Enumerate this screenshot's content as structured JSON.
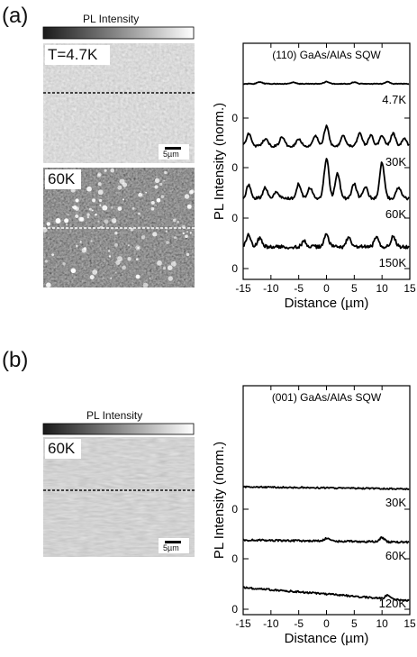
{
  "panel_a": {
    "label": "(a)",
    "colorbar_label": "PL Intensity",
    "image_top": {
      "temperature_label": "T=4.7K",
      "scalebar_label": "5µm"
    },
    "image_bottom": {
      "temperature_label": "60K"
    }
  },
  "panel_b": {
    "label": "(b)",
    "colorbar_label": "PL Intensity",
    "image": {
      "temperature_label": "60K",
      "scalebar_label": "5µm"
    }
  },
  "chart_data": [
    {
      "type": "line",
      "title": "(110) GaAs/AlAs SQW",
      "xlabel": "Distance (µm)",
      "ylabel": "PL Intensity (norm.)",
      "xlim": [
        -15,
        15
      ],
      "xticks": [
        "-15",
        "-10",
        "-5",
        "0",
        "5",
        "10",
        "15"
      ],
      "offset_zero_labels": [
        "0",
        "0",
        "0",
        "0"
      ],
      "series": [
        {
          "name": "4.7K",
          "level": 0.95,
          "peaks": [
            [
              -12,
              0.05
            ],
            [
              -6,
              0.04
            ],
            [
              0,
              0.06
            ],
            [
              5,
              0.05
            ],
            [
              11,
              0.05
            ]
          ],
          "noise": 0.02
        },
        {
          "name": "30K",
          "level": 0.6,
          "peaks": [
            [
              -14,
              0.35
            ],
            [
              -11,
              0.2
            ],
            [
              -8,
              0.25
            ],
            [
              -5,
              0.2
            ],
            [
              -2,
              0.3
            ],
            [
              0,
              0.55
            ],
            [
              3,
              0.3
            ],
            [
              6,
              0.35
            ],
            [
              8,
              0.3
            ],
            [
              10,
              0.3
            ],
            [
              12,
              0.35
            ],
            [
              14,
              0.2
            ]
          ],
          "noise": 0.06
        },
        {
          "name": "60K",
          "level": 0.55,
          "peaks": [
            [
              -14,
              0.35
            ],
            [
              -11,
              0.3
            ],
            [
              -9,
              0.2
            ],
            [
              -5,
              0.4
            ],
            [
              -3,
              0.3
            ],
            [
              0,
              1.1
            ],
            [
              2,
              0.7
            ],
            [
              5,
              0.4
            ],
            [
              7,
              0.3
            ],
            [
              10,
              1.0
            ],
            [
              13,
              0.3
            ]
          ],
          "noise": 0.08
        },
        {
          "name": "150K",
          "level": 0.6,
          "peaks": [
            [
              -14,
              0.35
            ],
            [
              -12,
              0.25
            ],
            [
              -4,
              0.15
            ],
            [
              0,
              0.35
            ],
            [
              4,
              0.25
            ],
            [
              9,
              0.25
            ],
            [
              12,
              0.3
            ]
          ],
          "noise": 0.1
        }
      ]
    },
    {
      "type": "line",
      "title": "(001) GaAs/AlAs SQW",
      "xlabel": "Distance (µm)",
      "ylabel": "PL Intensity (norm.)",
      "xlim": [
        -15,
        15
      ],
      "xticks": [
        "-15",
        "-10",
        "-5",
        "0",
        "5",
        "10",
        "15"
      ],
      "offset_zero_labels": [
        "0",
        "0",
        "0"
      ],
      "series": [
        {
          "name": "30K",
          "level": 0.62,
          "slope": -0.002,
          "peaks": [],
          "noise": 0.04
        },
        {
          "name": "60K",
          "level": 0.52,
          "slope": -0.002,
          "peaks": [
            [
              0,
              0.08
            ],
            [
              10,
              0.12
            ]
          ],
          "noise": 0.05
        },
        {
          "name": "120K",
          "level": 0.6,
          "slope": -0.012,
          "peaks": [
            [
              11,
              0.1
            ]
          ],
          "noise": 0.05
        }
      ]
    }
  ]
}
